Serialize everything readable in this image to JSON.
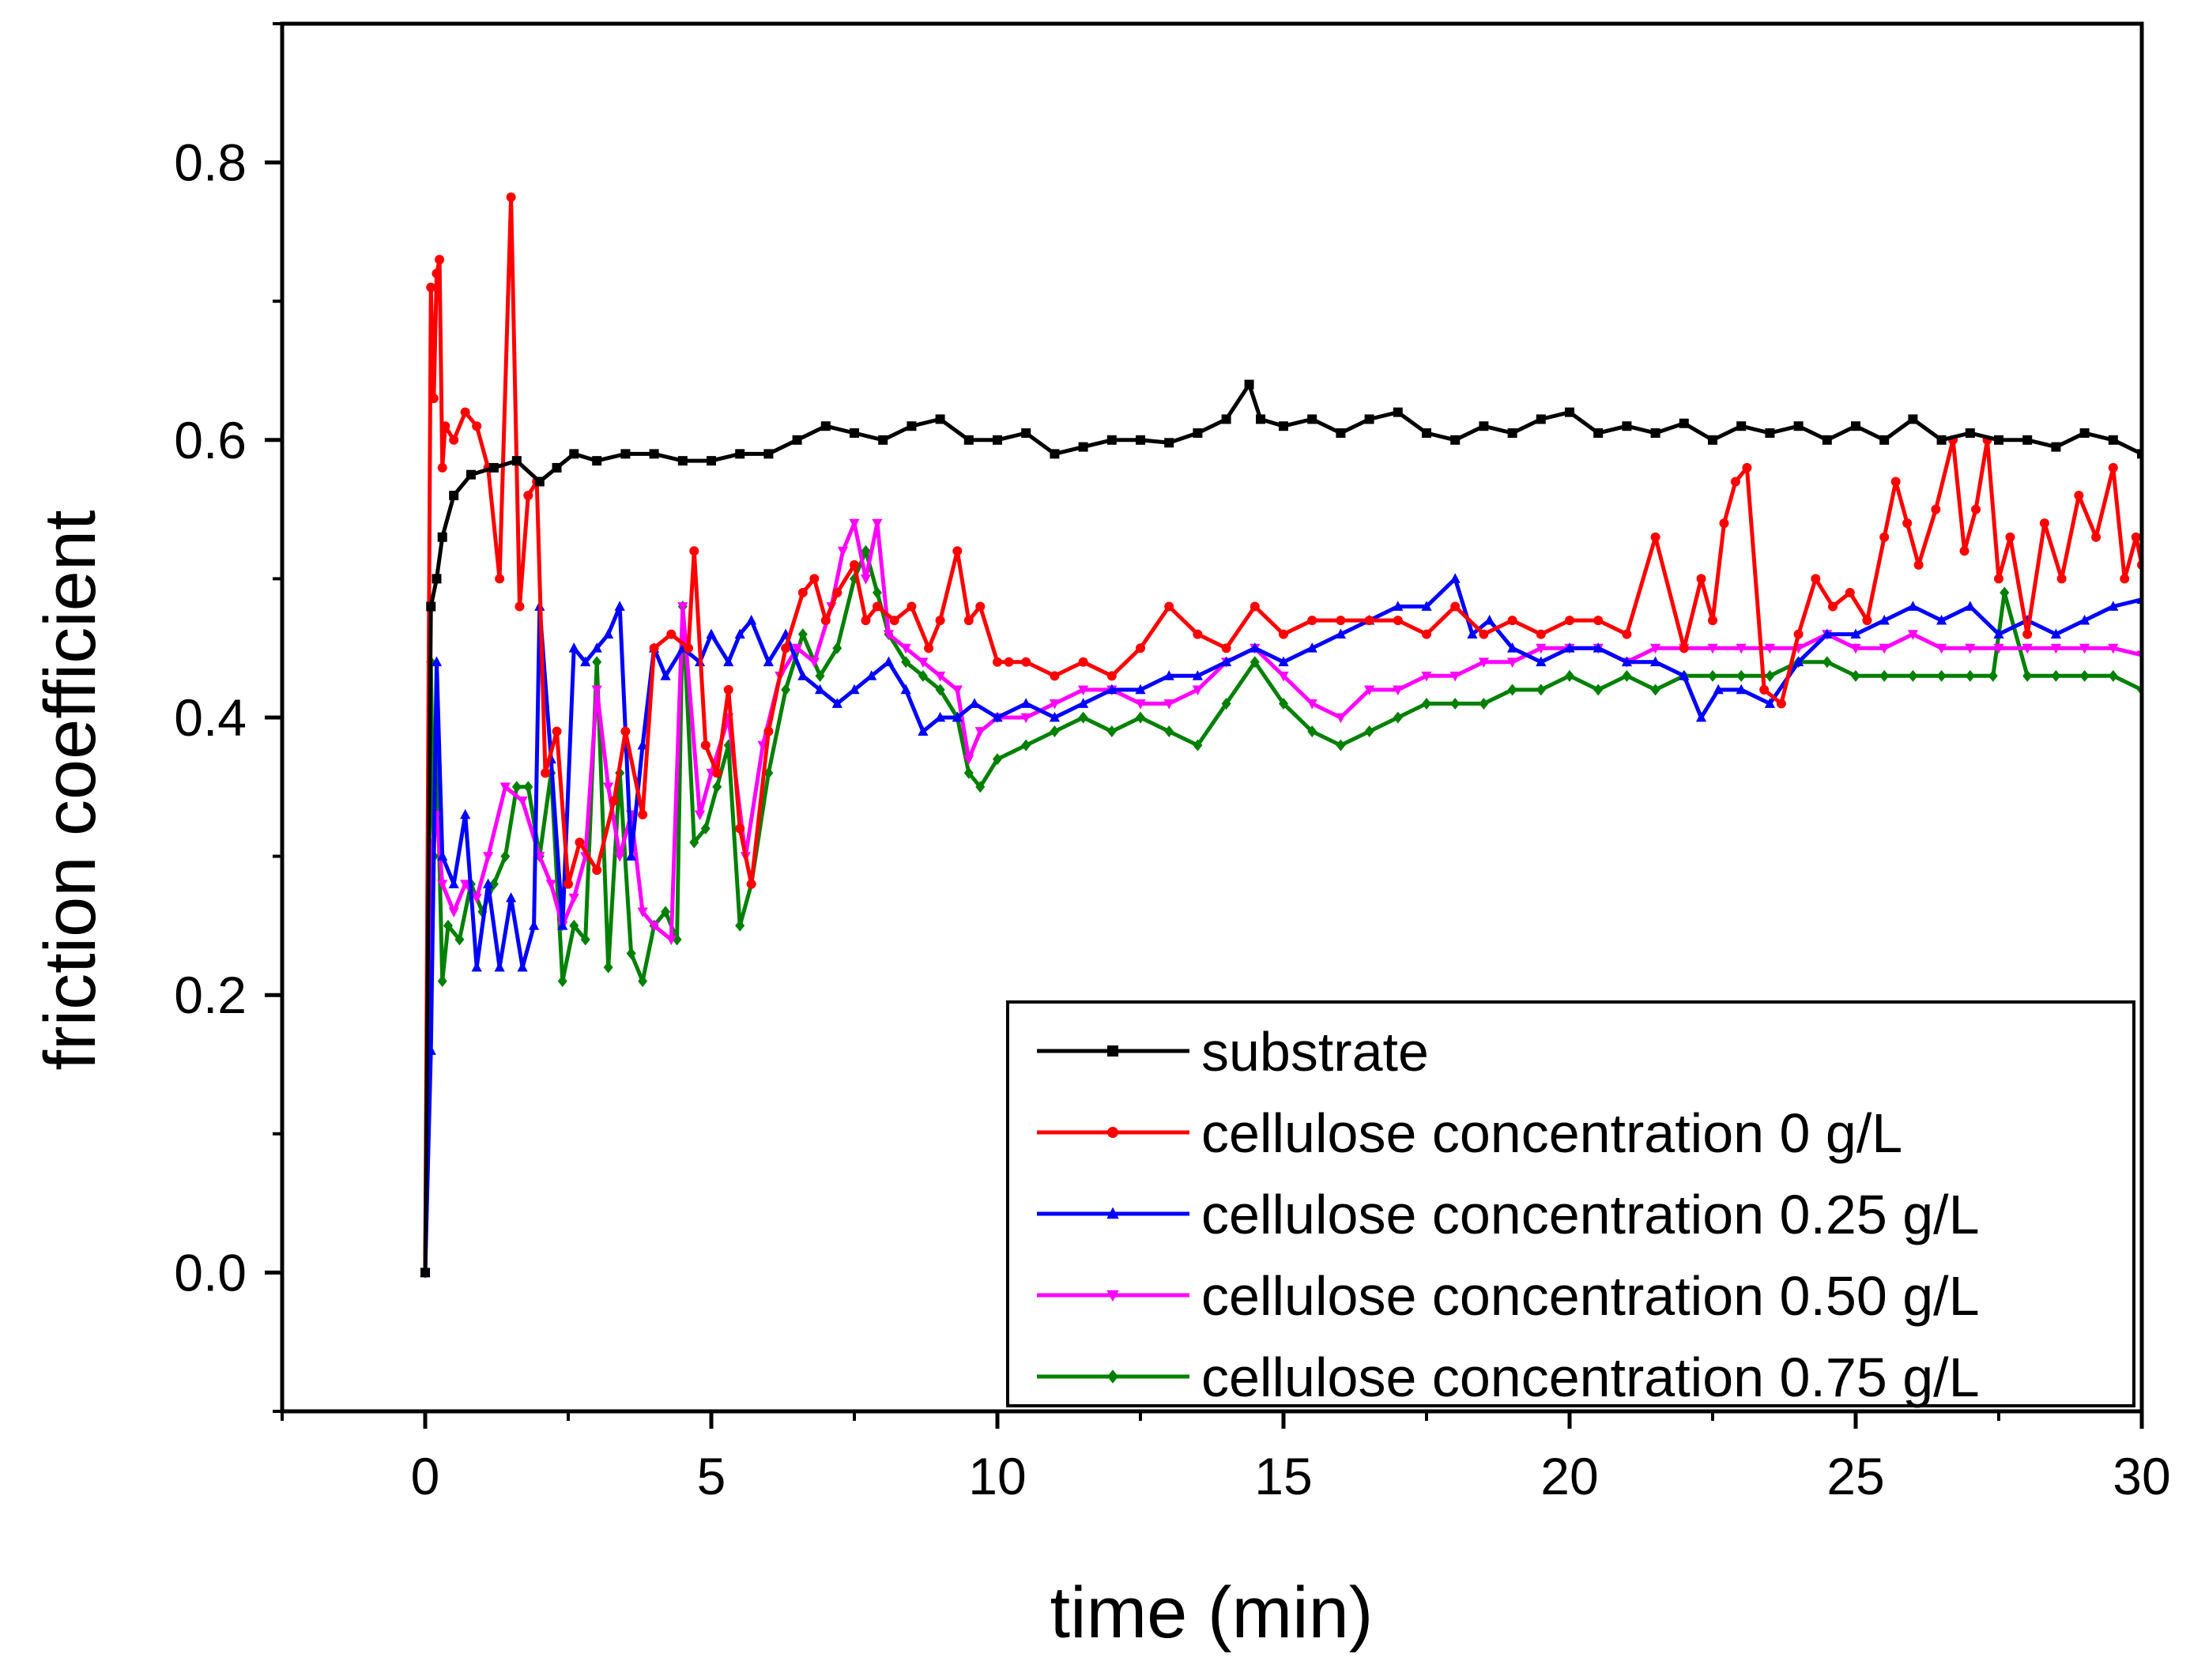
{
  "chart_data": {
    "type": "line",
    "xlabel": "time (min)",
    "ylabel": "friction coefficient",
    "xlim": [
      -2.5,
      30
    ],
    "ylim": [
      -0.1,
      0.9
    ],
    "xticks": [
      0,
      5,
      10,
      15,
      20,
      25,
      30
    ],
    "xtick_labels": [
      "0",
      "5",
      "10",
      "15",
      "20",
      "25",
      "30"
    ],
    "yticks": [
      0.0,
      0.2,
      0.4,
      0.6,
      0.8
    ],
    "ytick_labels": [
      "0.0",
      "0.2",
      "0.4",
      "0.6",
      "0.8"
    ],
    "legend_position": "bottom-right",
    "series": [
      {
        "name": "substrate",
        "color": "#000000",
        "marker": "square",
        "x": [
          0,
          0.1,
          0.2,
          0.3,
          0.5,
          0.8,
          1.2,
          1.6,
          2.0,
          2.3,
          2.6,
          3.0,
          3.5,
          4.0,
          4.5,
          5.0,
          5.5,
          6.0,
          6.5,
          7.0,
          7.5,
          8.0,
          8.5,
          9.0,
          9.5,
          10.0,
          10.5,
          11.0,
          11.5,
          12.0,
          12.5,
          13.0,
          13.5,
          14.0,
          14.4,
          14.6,
          15.0,
          15.5,
          16.0,
          16.5,
          17.0,
          17.5,
          18.0,
          18.5,
          19.0,
          19.5,
          20.0,
          20.5,
          21.0,
          21.5,
          22.0,
          22.5,
          23.0,
          23.5,
          24.0,
          24.5,
          25.0,
          25.5,
          26.0,
          26.5,
          27.0,
          27.5,
          28.0,
          28.5,
          29.0,
          29.5,
          30.0
        ],
        "y": [
          0.0,
          0.48,
          0.5,
          0.53,
          0.56,
          0.575,
          0.58,
          0.585,
          0.57,
          0.58,
          0.59,
          0.585,
          0.59,
          0.59,
          0.585,
          0.585,
          0.59,
          0.59,
          0.6,
          0.61,
          0.605,
          0.6,
          0.61,
          0.615,
          0.6,
          0.6,
          0.605,
          0.59,
          0.595,
          0.6,
          0.6,
          0.598,
          0.605,
          0.615,
          0.64,
          0.615,
          0.61,
          0.615,
          0.605,
          0.615,
          0.62,
          0.605,
          0.6,
          0.61,
          0.605,
          0.615,
          0.62,
          0.605,
          0.61,
          0.605,
          0.612,
          0.6,
          0.61,
          0.605,
          0.61,
          0.6,
          0.61,
          0.6,
          0.615,
          0.6,
          0.605,
          0.6,
          0.6,
          0.595,
          0.605,
          0.6,
          0.59
        ]
      },
      {
        "name": "cellulose concentration 0 g/L",
        "color": "#ff0000",
        "marker": "circle",
        "x": [
          0,
          0.1,
          0.15,
          0.2,
          0.25,
          0.3,
          0.35,
          0.5,
          0.7,
          0.9,
          1.1,
          1.3,
          1.5,
          1.65,
          1.8,
          1.95,
          2.1,
          2.3,
          2.5,
          2.7,
          3.0,
          3.3,
          3.5,
          3.8,
          4.0,
          4.3,
          4.6,
          4.7,
          4.9,
          5.1,
          5.3,
          5.5,
          5.7,
          6.0,
          6.3,
          6.6,
          6.8,
          7.0,
          7.2,
          7.5,
          7.7,
          7.9,
          8.2,
          8.5,
          8.8,
          9.0,
          9.3,
          9.5,
          9.7,
          10.0,
          10.2,
          10.5,
          11.0,
          11.5,
          12.0,
          12.5,
          13.0,
          13.5,
          14.0,
          14.5,
          15.0,
          15.5,
          16.0,
          16.5,
          17.0,
          17.5,
          18.0,
          18.5,
          19.0,
          19.5,
          20.0,
          20.5,
          21.0,
          21.5,
          22.0,
          22.3,
          22.5,
          22.7,
          22.9,
          23.1,
          23.4,
          23.7,
          24.0,
          24.3,
          24.6,
          24.9,
          25.2,
          25.5,
          25.7,
          25.9,
          26.1,
          26.4,
          26.7,
          26.9,
          27.1,
          27.3,
          27.5,
          27.7,
          28.0,
          28.3,
          28.6,
          28.9,
          29.2,
          29.5,
          29.7,
          29.9,
          30.0
        ],
        "y": [
          0.0,
          0.71,
          0.63,
          0.72,
          0.73,
          0.58,
          0.61,
          0.6,
          0.62,
          0.61,
          0.58,
          0.5,
          0.775,
          0.48,
          0.56,
          0.57,
          0.36,
          0.39,
          0.28,
          0.31,
          0.29,
          0.34,
          0.39,
          0.33,
          0.45,
          0.46,
          0.45,
          0.52,
          0.38,
          0.36,
          0.42,
          0.32,
          0.28,
          0.39,
          0.45,
          0.49,
          0.5,
          0.47,
          0.49,
          0.51,
          0.47,
          0.48,
          0.47,
          0.48,
          0.45,
          0.47,
          0.52,
          0.47,
          0.48,
          0.44,
          0.44,
          0.44,
          0.43,
          0.44,
          0.43,
          0.45,
          0.48,
          0.46,
          0.45,
          0.48,
          0.46,
          0.47,
          0.47,
          0.47,
          0.47,
          0.46,
          0.48,
          0.46,
          0.47,
          0.46,
          0.47,
          0.47,
          0.46,
          0.53,
          0.45,
          0.5,
          0.47,
          0.54,
          0.57,
          0.58,
          0.42,
          0.41,
          0.46,
          0.5,
          0.48,
          0.49,
          0.47,
          0.53,
          0.57,
          0.54,
          0.51,
          0.55,
          0.6,
          0.52,
          0.55,
          0.6,
          0.5,
          0.53,
          0.46,
          0.54,
          0.5,
          0.56,
          0.53,
          0.58,
          0.5,
          0.53,
          0.51
        ]
      },
      {
        "name": "cellulose concentration 0.25 g/L",
        "color": "#0000ff",
        "marker": "triangle-up",
        "x": [
          0,
          0.1,
          0.2,
          0.3,
          0.5,
          0.7,
          0.9,
          1.1,
          1.3,
          1.5,
          1.7,
          1.9,
          2.0,
          2.2,
          2.4,
          2.6,
          2.8,
          3.0,
          3.2,
          3.4,
          3.6,
          3.8,
          4.0,
          4.2,
          4.5,
          4.8,
          5.0,
          5.3,
          5.5,
          5.7,
          6.0,
          6.3,
          6.6,
          6.9,
          7.2,
          7.5,
          7.8,
          8.1,
          8.4,
          8.7,
          9.0,
          9.3,
          9.6,
          10.0,
          10.5,
          11.0,
          11.5,
          12.0,
          12.5,
          13.0,
          13.5,
          14.0,
          14.5,
          15.0,
          15.5,
          16.0,
          16.5,
          17.0,
          17.5,
          18.0,
          18.3,
          18.6,
          19.0,
          19.5,
          20.0,
          20.5,
          21.0,
          21.5,
          22.0,
          22.3,
          22.6,
          23.0,
          23.5,
          24.0,
          24.5,
          25.0,
          25.5,
          26.0,
          26.5,
          27.0,
          27.5,
          28.0,
          28.5,
          29.0,
          29.5,
          30.0
        ],
        "y": [
          0.0,
          0.16,
          0.44,
          0.3,
          0.28,
          0.33,
          0.22,
          0.28,
          0.22,
          0.27,
          0.22,
          0.25,
          0.48,
          0.37,
          0.25,
          0.45,
          0.44,
          0.45,
          0.46,
          0.48,
          0.3,
          0.38,
          0.45,
          0.43,
          0.45,
          0.44,
          0.46,
          0.44,
          0.46,
          0.47,
          0.44,
          0.46,
          0.43,
          0.42,
          0.41,
          0.42,
          0.43,
          0.44,
          0.42,
          0.39,
          0.4,
          0.4,
          0.41,
          0.4,
          0.41,
          0.4,
          0.41,
          0.42,
          0.42,
          0.43,
          0.43,
          0.44,
          0.45,
          0.44,
          0.45,
          0.46,
          0.47,
          0.48,
          0.48,
          0.5,
          0.46,
          0.47,
          0.45,
          0.44,
          0.45,
          0.45,
          0.44,
          0.44,
          0.43,
          0.4,
          0.42,
          0.42,
          0.41,
          0.44,
          0.46,
          0.46,
          0.47,
          0.48,
          0.47,
          0.48,
          0.46,
          0.47,
          0.46,
          0.47,
          0.48,
          0.485
        ]
      },
      {
        "name": "cellulose concentration 0.50 g/L",
        "color": "#ff00ff",
        "marker": "triangle-down",
        "x": [
          0,
          0.1,
          0.2,
          0.3,
          0.5,
          0.7,
          0.9,
          1.1,
          1.4,
          1.7,
          2.0,
          2.2,
          2.4,
          2.6,
          2.8,
          3.0,
          3.2,
          3.4,
          3.6,
          3.8,
          4.0,
          4.3,
          4.5,
          4.8,
          5.0,
          5.3,
          5.6,
          5.9,
          6.2,
          6.5,
          6.8,
          7.1,
          7.3,
          7.5,
          7.7,
          7.9,
          8.1,
          8.4,
          8.7,
          9.0,
          9.3,
          9.5,
          9.7,
          10.0,
          10.5,
          11.0,
          11.5,
          12.0,
          12.5,
          13.0,
          13.5,
          14.0,
          14.5,
          15.0,
          15.5,
          16.0,
          16.5,
          17.0,
          17.5,
          18.0,
          18.5,
          19.0,
          19.5,
          20.0,
          20.5,
          21.0,
          21.5,
          22.0,
          22.5,
          23.0,
          23.5,
          24.0,
          24.5,
          25.0,
          25.5,
          26.0,
          26.5,
          27.0,
          27.5,
          28.0,
          28.5,
          29.0,
          29.5,
          30.0
        ],
        "y": [
          0.0,
          0.3,
          0.33,
          0.28,
          0.26,
          0.28,
          0.27,
          0.3,
          0.35,
          0.34,
          0.3,
          0.28,
          0.25,
          0.27,
          0.3,
          0.42,
          0.35,
          0.3,
          0.33,
          0.26,
          0.25,
          0.24,
          0.48,
          0.33,
          0.36,
          0.4,
          0.3,
          0.38,
          0.43,
          0.45,
          0.44,
          0.48,
          0.52,
          0.54,
          0.5,
          0.54,
          0.46,
          0.45,
          0.44,
          0.43,
          0.42,
          0.37,
          0.39,
          0.4,
          0.4,
          0.41,
          0.42,
          0.42,
          0.41,
          0.41,
          0.42,
          0.44,
          0.45,
          0.43,
          0.41,
          0.4,
          0.42,
          0.42,
          0.43,
          0.43,
          0.44,
          0.44,
          0.45,
          0.45,
          0.45,
          0.44,
          0.45,
          0.45,
          0.45,
          0.45,
          0.45,
          0.45,
          0.46,
          0.45,
          0.45,
          0.46,
          0.45,
          0.45,
          0.45,
          0.45,
          0.45,
          0.45,
          0.45,
          0.445
        ]
      },
      {
        "name": "cellulose concentration 0.75 g/L",
        "color": "#008000",
        "marker": "diamond",
        "x": [
          0,
          0.1,
          0.15,
          0.2,
          0.3,
          0.4,
          0.6,
          0.8,
          1.0,
          1.2,
          1.4,
          1.6,
          1.8,
          2.0,
          2.2,
          2.4,
          2.6,
          2.8,
          3.0,
          3.2,
          3.4,
          3.6,
          3.8,
          4.0,
          4.2,
          4.4,
          4.5,
          4.7,
          4.9,
          5.1,
          5.3,
          5.5,
          5.7,
          6.0,
          6.3,
          6.6,
          6.9,
          7.2,
          7.5,
          7.7,
          7.9,
          8.1,
          8.4,
          8.7,
          9.0,
          9.3,
          9.5,
          9.7,
          10.0,
          10.5,
          11.0,
          11.5,
          12.0,
          12.5,
          13.0,
          13.5,
          14.0,
          14.5,
          15.0,
          15.5,
          16.0,
          16.5,
          17.0,
          17.5,
          18.0,
          18.5,
          19.0,
          19.5,
          20.0,
          20.5,
          21.0,
          21.5,
          22.0,
          22.5,
          23.0,
          23.5,
          24.0,
          24.5,
          25.0,
          25.5,
          26.0,
          26.5,
          27.0,
          27.4,
          27.6,
          28.0,
          28.5,
          29.0,
          29.5,
          30.0
        ],
        "y": [
          0.0,
          0.44,
          0.3,
          0.38,
          0.21,
          0.25,
          0.24,
          0.28,
          0.26,
          0.28,
          0.3,
          0.35,
          0.35,
          0.3,
          0.36,
          0.21,
          0.25,
          0.24,
          0.44,
          0.22,
          0.36,
          0.23,
          0.21,
          0.25,
          0.26,
          0.24,
          0.48,
          0.31,
          0.32,
          0.35,
          0.38,
          0.25,
          0.28,
          0.36,
          0.42,
          0.46,
          0.43,
          0.45,
          0.5,
          0.52,
          0.49,
          0.46,
          0.44,
          0.43,
          0.42,
          0.4,
          0.36,
          0.35,
          0.37,
          0.38,
          0.39,
          0.4,
          0.39,
          0.4,
          0.39,
          0.38,
          0.41,
          0.44,
          0.41,
          0.39,
          0.38,
          0.39,
          0.4,
          0.41,
          0.41,
          0.41,
          0.42,
          0.42,
          0.43,
          0.42,
          0.43,
          0.42,
          0.43,
          0.43,
          0.43,
          0.43,
          0.44,
          0.44,
          0.43,
          0.43,
          0.43,
          0.43,
          0.43,
          0.43,
          0.49,
          0.43,
          0.43,
          0.43,
          0.43,
          0.42
        ]
      }
    ]
  }
}
